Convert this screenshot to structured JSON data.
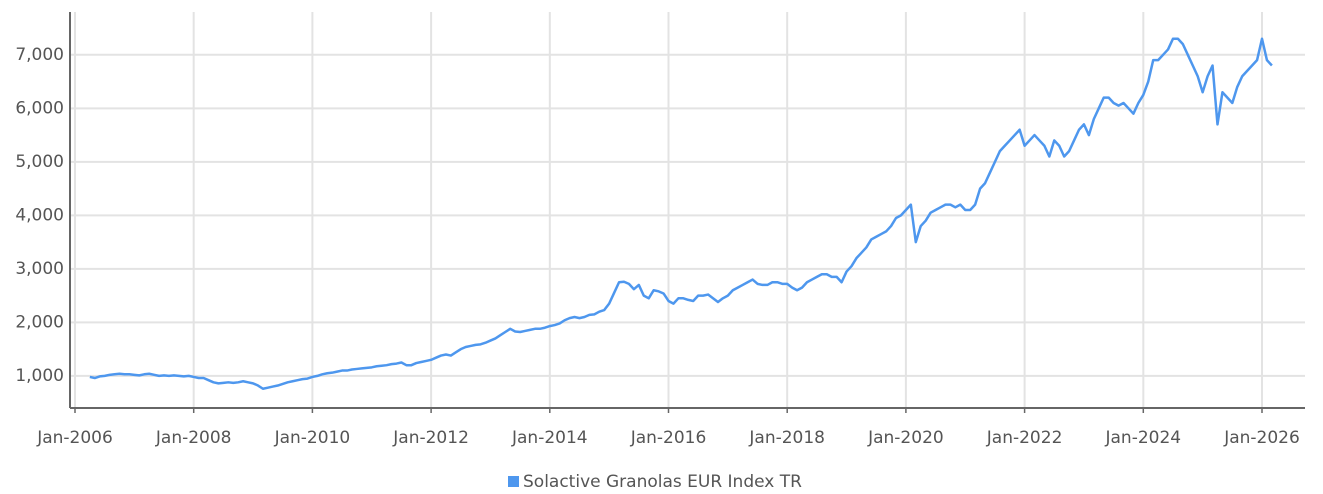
{
  "chart_data": {
    "type": "line",
    "x": [
      "2006-04",
      "2006-05",
      "2006-06",
      "2006-07",
      "2006-08",
      "2006-09",
      "2006-10",
      "2006-11",
      "2006-12",
      "2007-01",
      "2007-02",
      "2007-03",
      "2007-04",
      "2007-05",
      "2007-06",
      "2007-07",
      "2007-08",
      "2007-09",
      "2007-10",
      "2007-11",
      "2007-12",
      "2008-01",
      "2008-02",
      "2008-03",
      "2008-04",
      "2008-05",
      "2008-06",
      "2008-07",
      "2008-08",
      "2008-09",
      "2008-10",
      "2008-11",
      "2008-12",
      "2009-01",
      "2009-02",
      "2009-03",
      "2009-04",
      "2009-05",
      "2009-06",
      "2009-07",
      "2009-08",
      "2009-09",
      "2009-10",
      "2009-11",
      "2009-12",
      "2010-01",
      "2010-02",
      "2010-03",
      "2010-04",
      "2010-05",
      "2010-06",
      "2010-07",
      "2010-08",
      "2010-09",
      "2010-10",
      "2010-11",
      "2010-12",
      "2011-01",
      "2011-02",
      "2011-03",
      "2011-04",
      "2011-05",
      "2011-06",
      "2011-07",
      "2011-08",
      "2011-09",
      "2011-10",
      "2011-11",
      "2011-12",
      "2012-01",
      "2012-02",
      "2012-03",
      "2012-04",
      "2012-05",
      "2012-06",
      "2012-07",
      "2012-08",
      "2012-09",
      "2012-10",
      "2012-11",
      "2012-12",
      "2013-01",
      "2013-02",
      "2013-03",
      "2013-04",
      "2013-05",
      "2013-06",
      "2013-07",
      "2013-08",
      "2013-09",
      "2013-10",
      "2013-11",
      "2013-12",
      "2014-01",
      "2014-02",
      "2014-03",
      "2014-04",
      "2014-05",
      "2014-06",
      "2014-07",
      "2014-08",
      "2014-09",
      "2014-10",
      "2014-11",
      "2014-12",
      "2015-01",
      "2015-02",
      "2015-03",
      "2015-04",
      "2015-05",
      "2015-06",
      "2015-07",
      "2015-08",
      "2015-09",
      "2015-10",
      "2015-11",
      "2015-12",
      "2016-01",
      "2016-02",
      "2016-03",
      "2016-04",
      "2016-05",
      "2016-06",
      "2016-07",
      "2016-08",
      "2016-09",
      "2016-10",
      "2016-11",
      "2016-12",
      "2017-01",
      "2017-02",
      "2017-03",
      "2017-04",
      "2017-05",
      "2017-06",
      "2017-07",
      "2017-08",
      "2017-09",
      "2017-10",
      "2017-11",
      "2017-12",
      "2018-01",
      "2018-02",
      "2018-03",
      "2018-04",
      "2018-05",
      "2018-06",
      "2018-07",
      "2018-08",
      "2018-09",
      "2018-10",
      "2018-11",
      "2018-12",
      "2019-01",
      "2019-02",
      "2019-03",
      "2019-04",
      "2019-05",
      "2019-06",
      "2019-07",
      "2019-08",
      "2019-09",
      "2019-10",
      "2019-11",
      "2019-12",
      "2020-01",
      "2020-02",
      "2020-03",
      "2020-04",
      "2020-05",
      "2020-06",
      "2020-07",
      "2020-08",
      "2020-09",
      "2020-10",
      "2020-11",
      "2020-12",
      "2021-01",
      "2021-02",
      "2021-03",
      "2021-04",
      "2021-05",
      "2021-06",
      "2021-07",
      "2021-08",
      "2021-09",
      "2021-10",
      "2021-11",
      "2021-12",
      "2022-01",
      "2022-02",
      "2022-03",
      "2022-04",
      "2022-05",
      "2022-06",
      "2022-07",
      "2022-08",
      "2022-09",
      "2022-10",
      "2022-11",
      "2022-12",
      "2023-01",
      "2023-02",
      "2023-03",
      "2023-04",
      "2023-05",
      "2023-06",
      "2023-07",
      "2023-08",
      "2023-09",
      "2023-10",
      "2023-11",
      "2023-12",
      "2024-01",
      "2024-02",
      "2024-03",
      "2024-04",
      "2024-05",
      "2024-06",
      "2024-07",
      "2024-08",
      "2024-09",
      "2024-10",
      "2024-11",
      "2024-12",
      "2025-01",
      "2025-02",
      "2025-03",
      "2025-04",
      "2025-05",
      "2025-06",
      "2025-07",
      "2025-08",
      "2025-09",
      "2025-10",
      "2025-11",
      "2025-12",
      "2026-01",
      "2026-02",
      "2026-03"
    ],
    "series": [
      {
        "name": "Solactive Granolas EUR Index TR",
        "color": "#4e97ee",
        "values": [
          980,
          960,
          990,
          1000,
          1020,
          1030,
          1040,
          1030,
          1030,
          1020,
          1010,
          1030,
          1040,
          1020,
          1000,
          1010,
          1000,
          1010,
          1000,
          990,
          1000,
          980,
          960,
          960,
          920,
          880,
          860,
          870,
          880,
          870,
          880,
          900,
          880,
          860,
          820,
          760,
          780,
          800,
          820,
          850,
          880,
          900,
          920,
          940,
          950,
          980,
          1000,
          1030,
          1050,
          1060,
          1080,
          1100,
          1100,
          1120,
          1130,
          1140,
          1150,
          1160,
          1180,
          1190,
          1200,
          1220,
          1230,
          1250,
          1200,
          1200,
          1240,
          1260,
          1280,
          1300,
          1340,
          1380,
          1400,
          1380,
          1440,
          1500,
          1540,
          1560,
          1580,
          1590,
          1620,
          1660,
          1700,
          1760,
          1820,
          1880,
          1830,
          1820,
          1840,
          1860,
          1880,
          1880,
          1900,
          1930,
          1950,
          1980,
          2040,
          2080,
          2100,
          2080,
          2100,
          2140,
          2150,
          2200,
          2230,
          2350,
          2550,
          2750,
          2760,
          2720,
          2620,
          2700,
          2500,
          2450,
          2600,
          2580,
          2540,
          2400,
          2350,
          2450,
          2450,
          2420,
          2400,
          2500,
          2500,
          2520,
          2450,
          2380,
          2450,
          2500,
          2600,
          2650,
          2700,
          2750,
          2800,
          2720,
          2700,
          2700,
          2750,
          2750,
          2720,
          2720,
          2650,
          2600,
          2650,
          2750,
          2800,
          2850,
          2900,
          2900,
          2850,
          2850,
          2750,
          2950,
          3050,
          3200,
          3300,
          3400,
          3550,
          3600,
          3650,
          3700,
          3800,
          3950,
          4000,
          4100,
          4200,
          3500,
          3800,
          3900,
          4050,
          4100,
          4150,
          4200,
          4200,
          4150,
          4200,
          4100,
          4100,
          4200,
          4500,
          4600,
          4800,
          5000,
          5200,
          5300,
          5400,
          5500,
          5600,
          5300,
          5400,
          5500,
          5400,
          5300,
          5100,
          5400,
          5300,
          5100,
          5200,
          5400,
          5600,
          5700,
          5500,
          5800,
          6000,
          6200,
          6200,
          6100,
          6050,
          6100,
          6000,
          5900,
          6100,
          6250,
          6500,
          6900,
          6900,
          7000,
          7100,
          7300,
          7300,
          7200,
          7000,
          6800,
          6600,
          6300,
          6600,
          6800,
          5700,
          6300,
          6200,
          6100,
          6400,
          6600,
          6700,
          6800,
          6900,
          7300,
          6900,
          6800
        ]
      }
    ],
    "xticks": [
      {
        "value": "2006-01",
        "label": "Jan-2006"
      },
      {
        "value": "2008-01",
        "label": "Jan-2008"
      },
      {
        "value": "2010-01",
        "label": "Jan-2010"
      },
      {
        "value": "2012-01",
        "label": "Jan-2012"
      },
      {
        "value": "2014-01",
        "label": "Jan-2014"
      },
      {
        "value": "2016-01",
        "label": "Jan-2016"
      },
      {
        "value": "2018-01",
        "label": "Jan-2018"
      },
      {
        "value": "2020-01",
        "label": "Jan-2020"
      },
      {
        "value": "2022-01",
        "label": "Jan-2022"
      },
      {
        "value": "2024-01",
        "label": "Jan-2024"
      },
      {
        "value": "2026-01",
        "label": "Jan-2026"
      }
    ],
    "ylim": [
      400,
      7800
    ],
    "yticks": [
      {
        "value": 1000,
        "label": "1,000"
      },
      {
        "value": 2000,
        "label": "2,000"
      },
      {
        "value": 3000,
        "label": "3,000"
      },
      {
        "value": 4000,
        "label": "4,000"
      },
      {
        "value": 5000,
        "label": "5,000"
      },
      {
        "value": 6000,
        "label": "6,000"
      },
      {
        "value": 7000,
        "label": "7,000"
      }
    ],
    "grid": true,
    "legend": "bottom"
  }
}
